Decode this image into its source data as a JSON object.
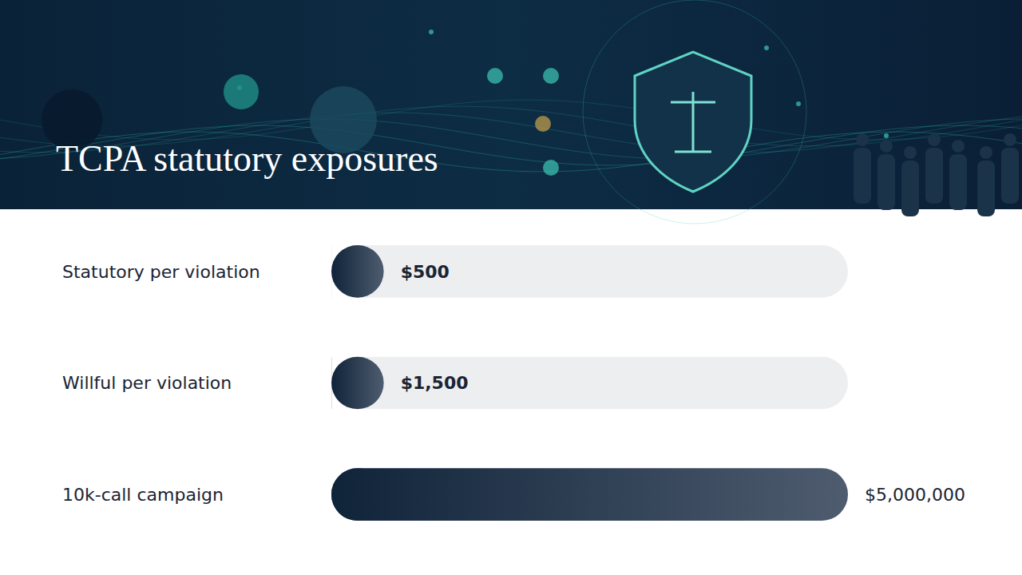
{
  "chart_data": {
    "type": "bar",
    "orientation": "horizontal",
    "title": "TCPA statutory exposures",
    "categories": [
      "Statutory per violation",
      "Willful per violation",
      "10k-call campaign"
    ],
    "values": [
      500,
      1500,
      5000000
    ],
    "value_labels": [
      "$500",
      "$1,500",
      "$5,000,000"
    ],
    "xlim": [
      0,
      5000000
    ],
    "tick_labels": false,
    "data_labels": true,
    "grid": false,
    "color": "#0f2339"
  }
}
